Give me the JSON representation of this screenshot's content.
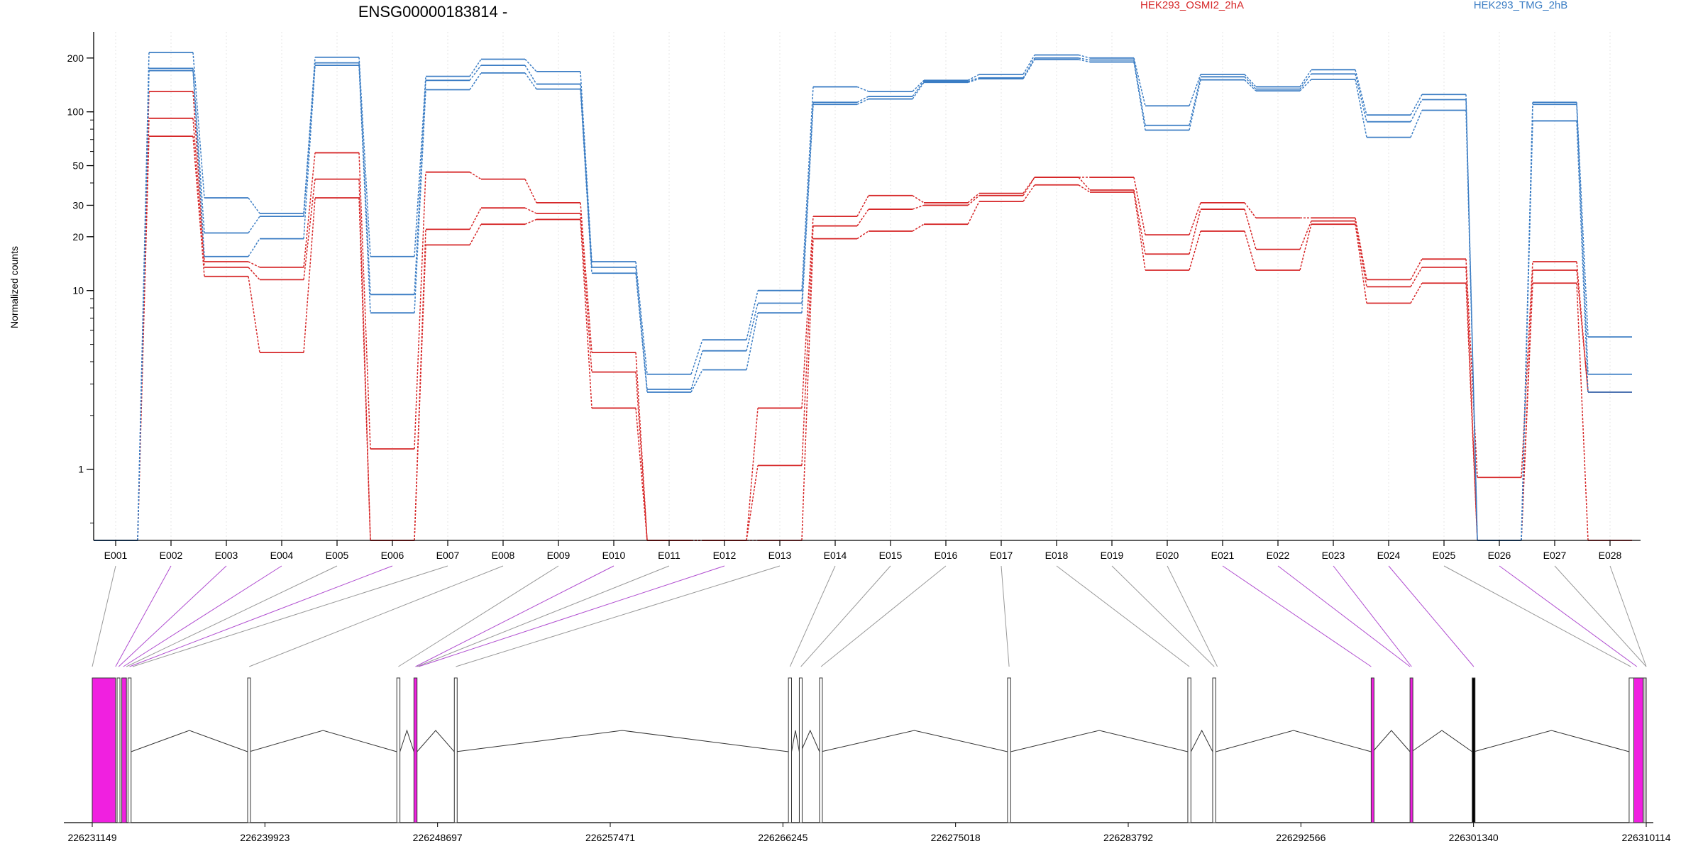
{
  "chart_data": {
    "type": "line",
    "title": "ENSG00000183814 -",
    "ylabel": "Normalized counts",
    "yscale": "log",
    "ylim": [
      0.4,
      280
    ],
    "ytick_values": [
      1,
      10,
      20,
      30,
      50,
      100,
      200
    ],
    "ytick_labels": [
      "1",
      "10",
      "20",
      "30",
      "50",
      "100",
      "200"
    ],
    "legend": [
      "HEK293_OSMI2_2hA",
      "HEK293_TMG_2hB"
    ],
    "legend_colors": [
      "#d62728",
      "#3b7dc4"
    ],
    "categories": [
      "E001",
      "E002",
      "E003",
      "E004",
      "E005",
      "E006",
      "E007",
      "E008",
      "E009",
      "E010",
      "E011",
      "E012",
      "E013",
      "E014",
      "E015",
      "E016",
      "E017",
      "E018",
      "E019",
      "E020",
      "E021",
      "E022",
      "E023",
      "E024",
      "E025",
      "E026",
      "E027",
      "E028"
    ],
    "series": [
      {
        "group": "HEK293_OSMI2_2hA",
        "color": "#d62728",
        "values": [
          0.4,
          130,
          14.5,
          13.5,
          59,
          1.3,
          46,
          42,
          31,
          4.5,
          0.4,
          0.4,
          2.2,
          26,
          34,
          31,
          35,
          43,
          43,
          20.5,
          31,
          25.5,
          25.5,
          11.5,
          15,
          0.9,
          14.5,
          2.7
        ]
      },
      {
        "group": "HEK293_OSMI2_2hA",
        "color": "#d62728",
        "values": [
          0.4,
          92,
          13.5,
          11.5,
          42,
          0.4,
          22,
          29,
          27,
          3.5,
          0.4,
          0.4,
          1.05,
          23,
          28.5,
          30,
          34,
          43,
          36.5,
          16,
          28.5,
          17,
          24.5,
          10.5,
          13.5,
          0.4,
          13,
          2.7
        ]
      },
      {
        "group": "HEK293_OSMI2_2hA",
        "color": "#d62728",
        "values": [
          0.4,
          73,
          12,
          4.5,
          33,
          0.4,
          18,
          23.5,
          25,
          2.2,
          0.4,
          0.4,
          0.4,
          19.5,
          21.5,
          23.5,
          31.5,
          39,
          35.5,
          13,
          21.5,
          13,
          23.5,
          8.5,
          11,
          0.4,
          11,
          0.4
        ]
      },
      {
        "group": "HEK293_TMG_2hB",
        "color": "#3b7dc4",
        "values": [
          0.4,
          215,
          33,
          27,
          202,
          15.5,
          158,
          197,
          168,
          14.5,
          3.4,
          5.3,
          10,
          138,
          130,
          150,
          162,
          208,
          200,
          108,
          162,
          138,
          172,
          96,
          125,
          0.4,
          113,
          5.5
        ]
      },
      {
        "group": "HEK293_TMG_2hB",
        "color": "#3b7dc4",
        "values": [
          0.4,
          175,
          21,
          26,
          188,
          9.5,
          150,
          182,
          143,
          13.5,
          2.8,
          4.6,
          8.5,
          113,
          122,
          148,
          155,
          200,
          195,
          84,
          157,
          134,
          163,
          88,
          117,
          0.4,
          110,
          3.4
        ]
      },
      {
        "group": "HEK293_TMG_2hB",
        "color": "#3b7dc4",
        "values": [
          0.4,
          170,
          15.5,
          19.5,
          182,
          7.5,
          133,
          165,
          134,
          12.5,
          2.7,
          3.6,
          7.5,
          110,
          118,
          146,
          153,
          196,
          190,
          79,
          151,
          131,
          152,
          72,
          102,
          0.4,
          89,
          2.7
        ]
      }
    ],
    "genomic_axis_labels": [
      "226231149",
      "226239923",
      "226248697",
      "226257471",
      "226266245",
      "226275018",
      "226283792",
      "226292566",
      "226301340",
      "226310114"
    ],
    "grid": "vertical dotted at exon centers",
    "legend_placement": "top"
  }
}
